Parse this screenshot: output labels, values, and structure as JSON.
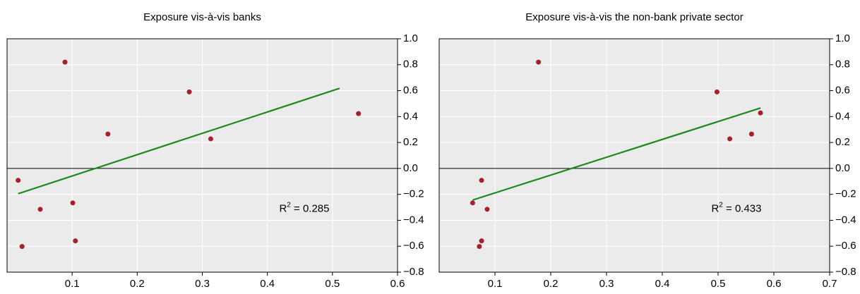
{
  "chart_data": [
    {
      "type": "scatter",
      "title": "Exposure vis-à-vis banks",
      "x": [
        0.017,
        0.089,
        0.28,
        0.155,
        0.313,
        0.54,
        0.051,
        0.101,
        0.023,
        0.105
      ],
      "values": [
        -0.092,
        0.82,
        0.59,
        0.265,
        0.228,
        0.423,
        -0.315,
        -0.266,
        -0.602,
        -0.559
      ],
      "color": "#a6202c",
      "trend": {
        "x": [
          0.017,
          0.511
        ],
        "values": [
          -0.195,
          0.618
        ],
        "color": "#1a8a1a"
      },
      "annotation": {
        "text": "R",
        "sup": "2",
        "rest": " = 0.285"
      },
      "xlim": [
        0,
        0.6
      ],
      "xticks": [
        0.1,
        0.2,
        0.3,
        0.4,
        0.5,
        0.6
      ],
      "ylim": [
        -0.8,
        1.0
      ],
      "yticks": [
        {
          "value": -0.8,
          "label": "−0.8"
        },
        {
          "value": -0.6,
          "label": "−0.6"
        },
        {
          "value": -0.4,
          "label": "−0.4"
        },
        {
          "value": -0.2,
          "label": "−0.2"
        },
        {
          "value": 0,
          "label": "0.0"
        },
        {
          "value": 0.2,
          "label": "0.2"
        },
        {
          "value": 0.4,
          "label": "0.4"
        },
        {
          "value": 0.6,
          "label": "0.6"
        },
        {
          "value": 0.8,
          "label": "0.8"
        },
        {
          "value": 1.0,
          "label": "1.0"
        }
      ],
      "grid": true
    },
    {
      "type": "scatter",
      "title": "Exposure vis-à-vis the non-bank private sector",
      "x": [
        0.06,
        0.076,
        0.178,
        0.498,
        0.521,
        0.56,
        0.576,
        0.086,
        0.072,
        0.076
      ],
      "values": [
        -0.266,
        -0.092,
        0.82,
        0.59,
        0.228,
        0.265,
        0.428,
        -0.315,
        -0.602,
        -0.559
      ],
      "color": "#a6202c",
      "trend": {
        "x": [
          0.06,
          0.576
        ],
        "values": [
          -0.244,
          0.466
        ],
        "color": "#1a8a1a"
      },
      "annotation": {
        "text": "R",
        "sup": "2",
        "rest": " = 0.433"
      },
      "xlim": [
        0,
        0.7
      ],
      "xticks": [
        0.1,
        0.2,
        0.3,
        0.4,
        0.5,
        0.6,
        0.7
      ],
      "ylim": [
        -0.8,
        1.0
      ],
      "yticks": [
        {
          "value": -0.8,
          "label": "−0.8"
        },
        {
          "value": -0.6,
          "label": "−0.6"
        },
        {
          "value": -0.4,
          "label": "−0.4"
        },
        {
          "value": -0.2,
          "label": "−0.2"
        },
        {
          "value": 0,
          "label": "0.0"
        },
        {
          "value": 0.2,
          "label": "0.2"
        },
        {
          "value": 0.4,
          "label": "0.4"
        },
        {
          "value": 0.6,
          "label": "0.6"
        },
        {
          "value": 0.8,
          "label": "0.8"
        },
        {
          "value": 1.0,
          "label": "1.0"
        }
      ],
      "grid": true
    }
  ]
}
